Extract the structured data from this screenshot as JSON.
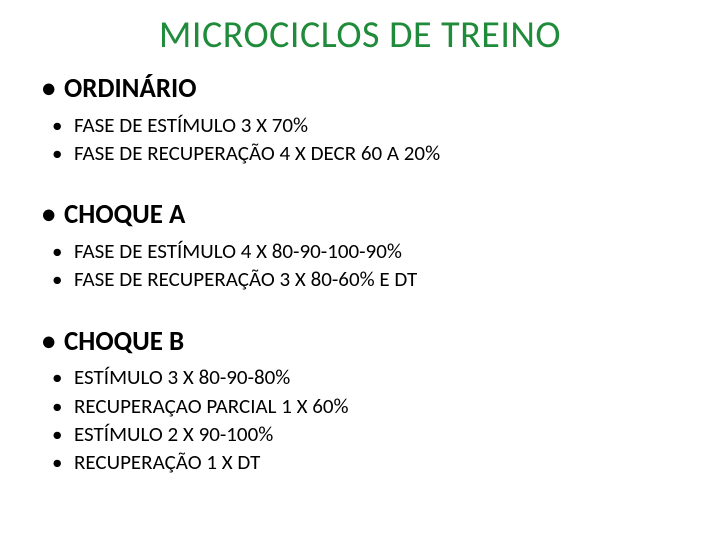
{
  "title": "MICROCICLOS DE TREINO",
  "title_color": "#1f8b3b",
  "text_color": "#000000",
  "background_color": "#ffffff",
  "title_fontsize": 38,
  "header_fontsize": 27,
  "item_fontsize": 21,
  "sections": [
    {
      "header": "ORDINÁRIO",
      "items": [
        "FASE DE ESTÍMULO 3 X 70%",
        "FASE DE RECUPERAÇÃO 4 X DECR 60 A 20%"
      ]
    },
    {
      "header": "CHOQUE A",
      "items": [
        "FASE DE ESTÍMULO 4 X 80-90-100-90%",
        "FASE DE RECUPERAÇÃO 3 X 80-60% E DT"
      ]
    },
    {
      "header": "CHOQUE B",
      "items": [
        "ESTÍMULO 3 X 80-90-80%",
        "RECUPERAÇAO PARCIAL 1 X 60%",
        "ESTÍMULO 2 X 90-100%",
        "RECUPERAÇÃO 1 X DT"
      ]
    }
  ]
}
